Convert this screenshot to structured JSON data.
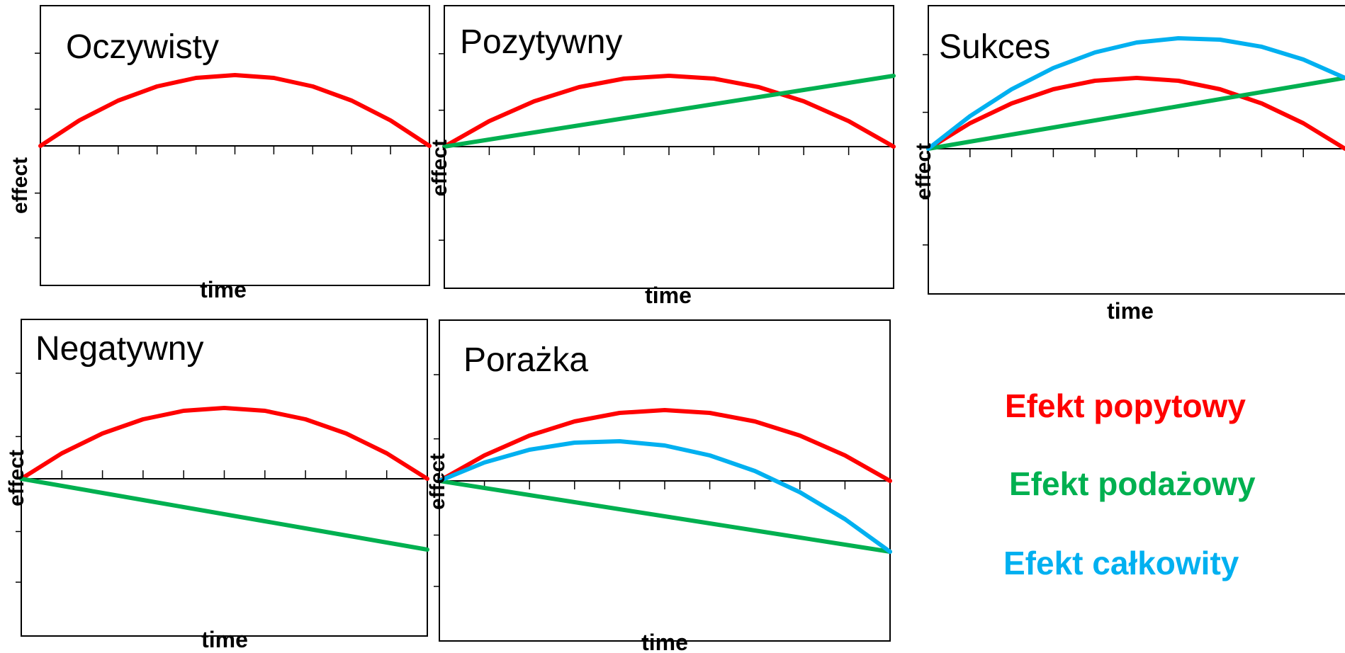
{
  "colors": {
    "demand": "#ff0000",
    "supply": "#00b050",
    "total": "#00b0f0",
    "axis": "#000000"
  },
  "legend": {
    "demand": "Efekt popytowy",
    "supply": "Efekt podażowy",
    "total": "Efekt całkowity"
  },
  "chart_data": [
    {
      "type": "line",
      "title": "Oczywisty",
      "xlabel": "time",
      "ylabel": "effect",
      "x": [
        0,
        1,
        2,
        3,
        4,
        5,
        6,
        7,
        8,
        9,
        10
      ],
      "xlim": [
        0,
        10
      ],
      "ylim": [
        -1,
        1
      ],
      "grid": false,
      "series": [
        {
          "key": "demand",
          "values": [
            0,
            0.18,
            0.32,
            0.42,
            0.48,
            0.5,
            0.48,
            0.42,
            0.32,
            0.18,
            0
          ]
        }
      ]
    },
    {
      "type": "line",
      "title": "Pozytywny",
      "xlabel": "time",
      "ylabel": "effect",
      "x": [
        0,
        1,
        2,
        3,
        4,
        5,
        6,
        7,
        8,
        9,
        10
      ],
      "xlim": [
        0,
        10
      ],
      "ylim": [
        -1,
        1
      ],
      "grid": false,
      "series": [
        {
          "key": "demand",
          "values": [
            0,
            0.18,
            0.32,
            0.42,
            0.48,
            0.5,
            0.48,
            0.42,
            0.32,
            0.18,
            0
          ]
        },
        {
          "key": "supply",
          "values": [
            0,
            0.05,
            0.1,
            0.15,
            0.2,
            0.25,
            0.3,
            0.35,
            0.4,
            0.45,
            0.5
          ]
        }
      ]
    },
    {
      "type": "line",
      "title": "Sukces",
      "xlabel": "time",
      "ylabel": "effect",
      "x": [
        0,
        1,
        2,
        3,
        4,
        5,
        6,
        7,
        8,
        9,
        10
      ],
      "xlim": [
        0,
        10
      ],
      "ylim": [
        -1,
        1
      ],
      "grid": false,
      "series": [
        {
          "key": "demand",
          "values": [
            0,
            0.18,
            0.32,
            0.42,
            0.48,
            0.5,
            0.48,
            0.42,
            0.32,
            0.18,
            0
          ]
        },
        {
          "key": "supply",
          "values": [
            0,
            0.05,
            0.1,
            0.15,
            0.2,
            0.25,
            0.3,
            0.35,
            0.4,
            0.45,
            0.5
          ]
        },
        {
          "key": "total",
          "values": [
            0,
            0.23,
            0.42,
            0.57,
            0.68,
            0.75,
            0.78,
            0.77,
            0.72,
            0.63,
            0.5
          ]
        }
      ]
    },
    {
      "type": "line",
      "title": "Negatywny",
      "xlabel": "time",
      "ylabel": "effect",
      "x": [
        0,
        1,
        2,
        3,
        4,
        5,
        6,
        7,
        8,
        9,
        10
      ],
      "xlim": [
        0,
        10
      ],
      "ylim": [
        -1,
        1
      ],
      "grid": false,
      "series": [
        {
          "key": "demand",
          "values": [
            0,
            0.18,
            0.32,
            0.42,
            0.48,
            0.5,
            0.48,
            0.42,
            0.32,
            0.18,
            0
          ]
        },
        {
          "key": "supply",
          "values": [
            0,
            -0.05,
            -0.1,
            -0.15,
            -0.2,
            -0.25,
            -0.3,
            -0.35,
            -0.4,
            -0.45,
            -0.5
          ]
        }
      ]
    },
    {
      "type": "line",
      "title": "Porażka",
      "xlabel": "time",
      "ylabel": "effect",
      "x": [
        0,
        1,
        2,
        3,
        4,
        5,
        6,
        7,
        8,
        9,
        10
      ],
      "xlim": [
        0,
        10
      ],
      "ylim": [
        -1,
        1
      ],
      "grid": false,
      "series": [
        {
          "key": "demand",
          "values": [
            0,
            0.18,
            0.32,
            0.42,
            0.48,
            0.5,
            0.48,
            0.42,
            0.32,
            0.18,
            0
          ]
        },
        {
          "key": "supply",
          "values": [
            0,
            -0.05,
            -0.1,
            -0.15,
            -0.2,
            -0.25,
            -0.3,
            -0.35,
            -0.4,
            -0.45,
            -0.5
          ]
        },
        {
          "key": "total",
          "values": [
            0,
            0.13,
            0.22,
            0.27,
            0.28,
            0.25,
            0.18,
            0.07,
            -0.08,
            -0.27,
            -0.5
          ]
        }
      ]
    }
  ]
}
